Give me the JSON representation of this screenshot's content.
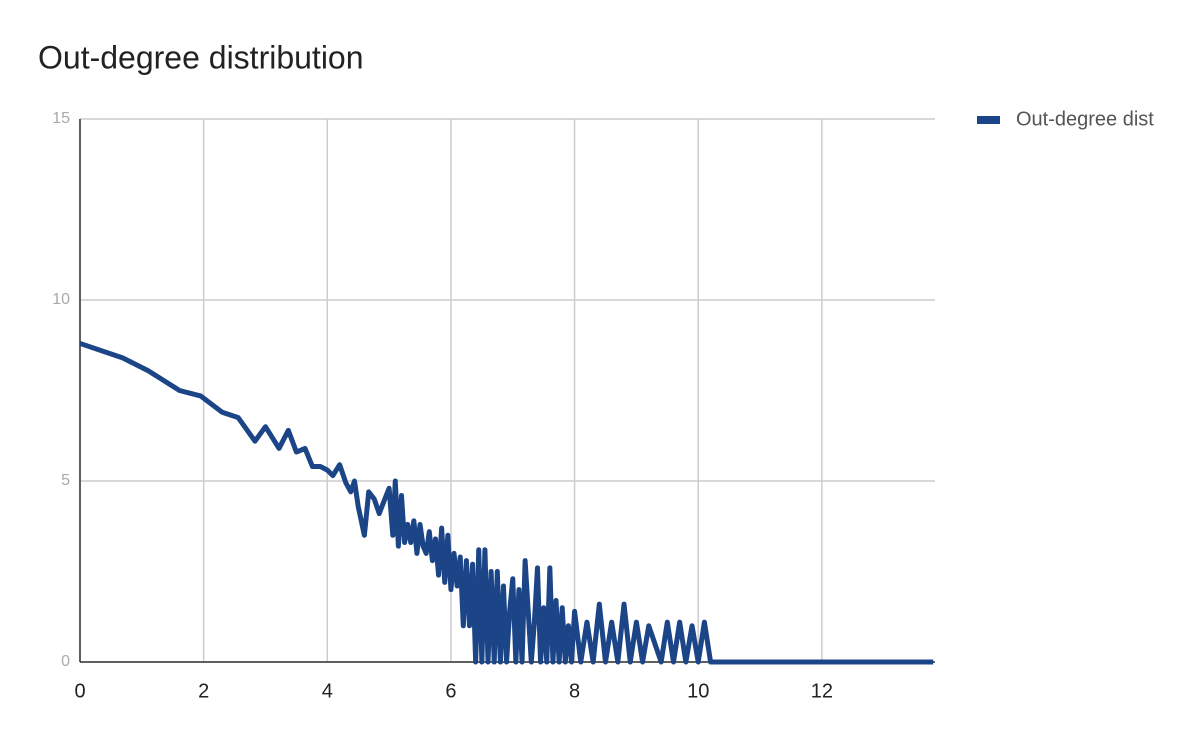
{
  "chart_data": {
    "type": "line",
    "title": "Out-degree distribution",
    "x": [
      0,
      0.69,
      1.1,
      1.61,
      1.95,
      2.3,
      2.56,
      2.83,
      3.0,
      3.22,
      3.37,
      3.5,
      3.64,
      3.76,
      3.89,
      4.0,
      4.09,
      4.2,
      4.3,
      4.38,
      4.44,
      4.5,
      4.6,
      4.67,
      4.76,
      4.84,
      4.93,
      5.0,
      5.06,
      5.1,
      5.15,
      5.2,
      5.25,
      5.3,
      5.35,
      5.4,
      5.45,
      5.5,
      5.55,
      5.6,
      5.65,
      5.7,
      5.75,
      5.8,
      5.85,
      5.9,
      5.95,
      6.0,
      6.05,
      6.1,
      6.15,
      6.2,
      6.25,
      6.3,
      6.35,
      6.4,
      6.45,
      6.5,
      6.55,
      6.6,
      6.65,
      6.7,
      6.75,
      6.8,
      6.85,
      6.9,
      6.95,
      7.0,
      7.05,
      7.1,
      7.15,
      7.2,
      7.3,
      7.35,
      7.4,
      7.45,
      7.5,
      7.55,
      7.6,
      7.65,
      7.7,
      7.75,
      7.8,
      7.85,
      7.9,
      7.95,
      8.0,
      8.1,
      8.2,
      8.3,
      8.4,
      8.5,
      8.6,
      8.7,
      8.8,
      8.9,
      9.0,
      9.1,
      9.2,
      9.4,
      9.5,
      9.6,
      9.7,
      9.8,
      9.9,
      10.0,
      10.1,
      10.2,
      10.3,
      13.8
    ],
    "series": [
      {
        "name": "Out-degree dist",
        "color": "#1c4587",
        "values": [
          8.8,
          8.4,
          8.05,
          7.5,
          7.35,
          6.9,
          6.75,
          6.1,
          6.5,
          5.9,
          6.4,
          5.8,
          5.9,
          5.4,
          5.4,
          5.3,
          5.15,
          5.45,
          4.95,
          4.7,
          5.0,
          4.3,
          3.5,
          4.7,
          4.5,
          4.1,
          4.5,
          4.8,
          3.5,
          5.0,
          3.2,
          4.6,
          3.3,
          3.8,
          3.3,
          3.9,
          3.0,
          3.8,
          3.2,
          3.0,
          3.6,
          2.8,
          3.4,
          2.4,
          3.7,
          2.2,
          3.5,
          2.0,
          3.0,
          2.1,
          2.9,
          1.0,
          2.8,
          1.0,
          2.7,
          0,
          3.1,
          0,
          3.1,
          0,
          2.5,
          0,
          2.5,
          0,
          2.1,
          0,
          1.4,
          2.3,
          0,
          2.0,
          0,
          2.8,
          0,
          1.1,
          2.6,
          0,
          1.5,
          0,
          2.6,
          0,
          1.7,
          0,
          1.5,
          0,
          1.0,
          0,
          1.4,
          0,
          1.1,
          0,
          1.6,
          0,
          1.1,
          0,
          1.6,
          0,
          1.1,
          0,
          1.0,
          0,
          1.1,
          0,
          1.1,
          0,
          1.0,
          0,
          1.1,
          0,
          0,
          0
        ]
      }
    ],
    "xlim": [
      0,
      13.83
    ],
    "ylim": [
      0,
      15
    ],
    "xticks": [
      0,
      2,
      4,
      6,
      8,
      10,
      12
    ],
    "yticks": [
      0,
      5,
      10,
      15
    ],
    "grid": true,
    "legend": "right"
  }
}
